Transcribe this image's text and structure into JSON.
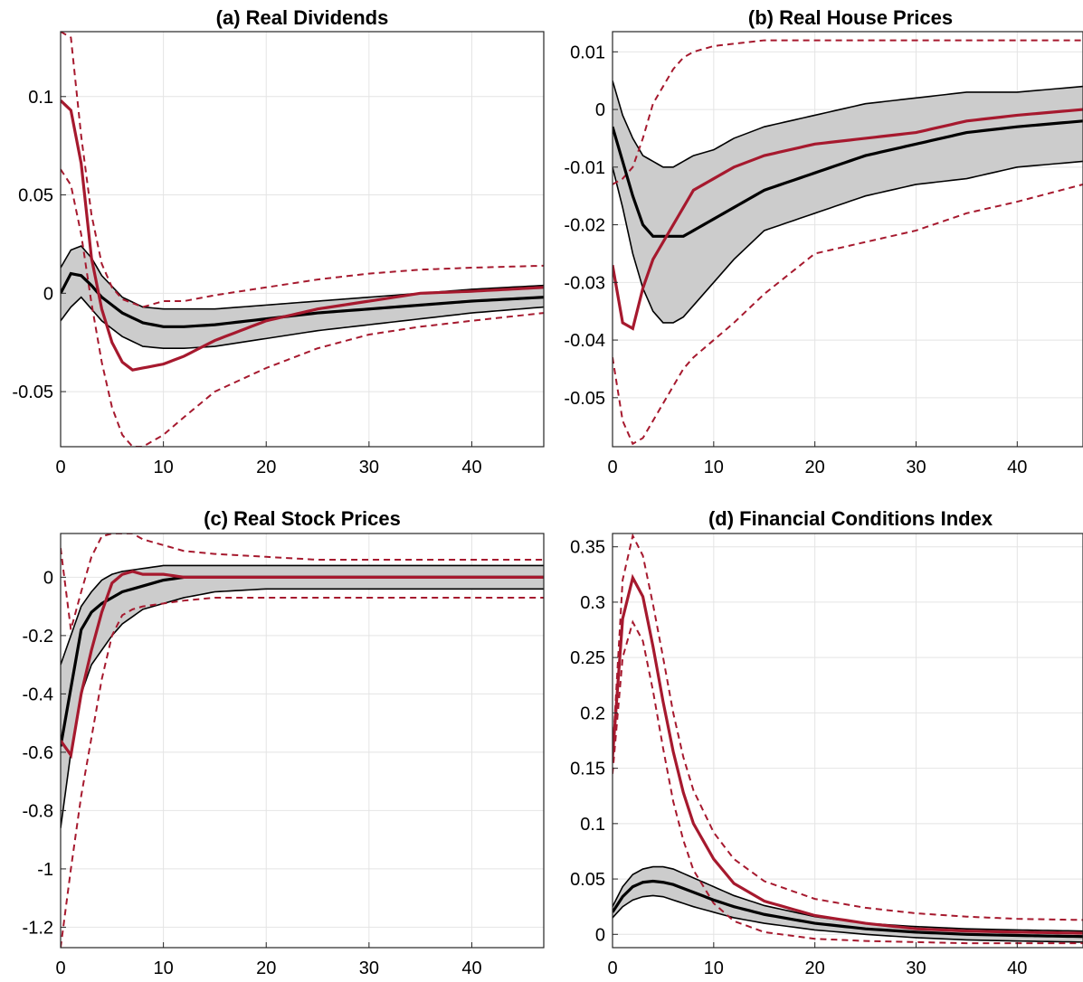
{
  "colors": {
    "irf": "#000000",
    "band_fill": "#cccccc",
    "alt": "#a6192e",
    "grid": "#e4e4e4",
    "axis": "#262626"
  },
  "chart_data": [
    {
      "id": "a",
      "type": "line",
      "title": "(a) Real Dividends",
      "xlim": [
        0,
        47
      ],
      "ylim": [
        -0.078,
        0.133
      ],
      "xticks": [
        0,
        10,
        20,
        30,
        40
      ],
      "xtick_labels": [
        "0",
        "10",
        "20",
        "30",
        "40"
      ],
      "yticks": [
        -0.05,
        0,
        0.05,
        0.1
      ],
      "ytick_labels": [
        "-0.05",
        "0",
        "0.05",
        "0.1"
      ],
      "grid": true,
      "series": [
        {
          "role": "band",
          "kx": [
            0,
            1,
            2,
            3,
            4,
            6,
            8,
            10,
            12,
            15,
            20,
            25,
            30,
            35,
            40,
            47
          ],
          "lower": [
            -0.014,
            -0.007,
            -0.002,
            -0.008,
            -0.014,
            -0.022,
            -0.027,
            -0.028,
            -0.028,
            -0.027,
            -0.023,
            -0.019,
            -0.016,
            -0.013,
            -0.01,
            -0.007
          ],
          "upper": [
            0.013,
            0.022,
            0.024,
            0.018,
            0.009,
            -0.002,
            -0.007,
            -0.008,
            -0.008,
            -0.008,
            -0.006,
            -0.004,
            -0.002,
            0.0,
            0.002,
            0.004
          ]
        },
        {
          "role": "irf",
          "kx": [
            0,
            1,
            2,
            3,
            4,
            6,
            8,
            10,
            12,
            15,
            20,
            25,
            30,
            35,
            40,
            47
          ],
          "y": [
            0.0,
            0.01,
            0.009,
            0.004,
            -0.002,
            -0.01,
            -0.015,
            -0.017,
            -0.017,
            -0.016,
            -0.013,
            -0.01,
            -0.008,
            -0.006,
            -0.004,
            -0.002
          ]
        },
        {
          "role": "alt",
          "kx": [
            0,
            1,
            2,
            3,
            4,
            5,
            6,
            7,
            8,
            10,
            12,
            15,
            20,
            25,
            30,
            35,
            40,
            47
          ],
          "y": [
            0.098,
            0.093,
            0.066,
            0.018,
            -0.008,
            -0.025,
            -0.035,
            -0.039,
            -0.038,
            -0.036,
            -0.032,
            -0.024,
            -0.014,
            -0.008,
            -0.004,
            0.0,
            0.001,
            0.003
          ]
        },
        {
          "role": "alt_band",
          "kx": [
            0,
            1,
            2,
            3,
            4,
            5,
            6,
            8,
            10,
            12,
            15,
            20,
            25,
            30,
            35,
            40,
            47
          ],
          "y": [
            0.133,
            0.13,
            0.08,
            0.04,
            0.015,
            0.003,
            -0.003,
            -0.007,
            -0.004,
            -0.004,
            -0.001,
            0.003,
            0.007,
            0.01,
            0.012,
            0.013,
            0.014
          ]
        },
        {
          "role": "alt_band",
          "kx": [
            0,
            1,
            2,
            3,
            4,
            5,
            6,
            7,
            8,
            10,
            12,
            15,
            20,
            25,
            30,
            35,
            40,
            47
          ],
          "y": [
            0.063,
            0.055,
            0.03,
            -0.005,
            -0.035,
            -0.058,
            -0.072,
            -0.078,
            -0.078,
            -0.072,
            -0.063,
            -0.05,
            -0.038,
            -0.028,
            -0.021,
            -0.017,
            -0.014,
            -0.01
          ]
        }
      ]
    },
    {
      "id": "b",
      "type": "line",
      "title": "(b) Real House Prices",
      "xlim": [
        0,
        46.5
      ],
      "ylim": [
        -0.0585,
        0.0135
      ],
      "xticks": [
        0,
        10,
        20,
        30,
        40
      ],
      "xtick_labels": [
        "0",
        "10",
        "20",
        "30",
        "40"
      ],
      "yticks": [
        -0.05,
        -0.04,
        -0.03,
        -0.02,
        -0.01,
        0,
        0.01
      ],
      "ytick_labels": [
        "-0.05",
        "-0.04",
        "-0.03",
        "-0.02",
        "-0.01",
        "0",
        "0.01"
      ],
      "grid": true,
      "series": [
        {
          "role": "band",
          "kx": [
            0,
            1,
            2,
            3,
            4,
            5,
            6,
            7,
            8,
            10,
            12,
            15,
            20,
            25,
            30,
            35,
            40,
            46.5
          ],
          "lower": [
            -0.01,
            -0.017,
            -0.025,
            -0.031,
            -0.035,
            -0.037,
            -0.037,
            -0.036,
            -0.034,
            -0.03,
            -0.026,
            -0.021,
            -0.018,
            -0.015,
            -0.013,
            -0.012,
            -0.01,
            -0.009
          ],
          "upper": [
            0.005,
            -0.001,
            -0.005,
            -0.008,
            -0.009,
            -0.01,
            -0.01,
            -0.009,
            -0.008,
            -0.007,
            -0.005,
            -0.003,
            -0.001,
            0.001,
            0.002,
            0.003,
            0.003,
            0.004
          ]
        },
        {
          "role": "irf",
          "kx": [
            0,
            1,
            2,
            3,
            4,
            5,
            6,
            7,
            8,
            10,
            12,
            15,
            20,
            25,
            30,
            35,
            40,
            46.5
          ],
          "y": [
            -0.003,
            -0.009,
            -0.015,
            -0.02,
            -0.022,
            -0.022,
            -0.022,
            -0.022,
            -0.021,
            -0.019,
            -0.017,
            -0.014,
            -0.011,
            -0.008,
            -0.006,
            -0.004,
            -0.003,
            -0.002
          ]
        },
        {
          "role": "alt",
          "kx": [
            0,
            1,
            2,
            3,
            4,
            5,
            6,
            7,
            8,
            10,
            12,
            15,
            20,
            25,
            30,
            35,
            40,
            46.5
          ],
          "y": [
            -0.027,
            -0.037,
            -0.038,
            -0.031,
            -0.026,
            -0.023,
            -0.02,
            -0.017,
            -0.014,
            -0.012,
            -0.01,
            -0.008,
            -0.006,
            -0.005,
            -0.004,
            -0.002,
            -0.001,
            0.0
          ]
        },
        {
          "role": "alt_band",
          "kx": [
            0,
            1,
            2,
            3,
            4,
            5,
            6,
            7,
            8,
            10,
            15,
            20,
            25,
            30,
            35,
            40,
            46.5
          ],
          "y": [
            -0.013,
            -0.012,
            -0.01,
            -0.005,
            0.001,
            0.004,
            0.007,
            0.009,
            0.01,
            0.011,
            0.012,
            0.012,
            0.012,
            0.012,
            0.012,
            0.012,
            0.012
          ]
        },
        {
          "role": "alt_band",
          "kx": [
            0,
            1,
            2,
            3,
            4,
            5,
            6,
            7,
            8,
            10,
            12,
            15,
            20,
            25,
            30,
            35,
            40,
            46.5
          ],
          "y": [
            -0.043,
            -0.054,
            -0.058,
            -0.057,
            -0.054,
            -0.051,
            -0.048,
            -0.045,
            -0.043,
            -0.04,
            -0.037,
            -0.032,
            -0.025,
            -0.023,
            -0.021,
            -0.018,
            -0.016,
            -0.013
          ]
        }
      ]
    },
    {
      "id": "c",
      "type": "line",
      "title": "(c) Real Stock Prices",
      "xlim": [
        0,
        47
      ],
      "ylim": [
        -1.27,
        0.15
      ],
      "xticks": [
        0,
        10,
        20,
        30,
        40
      ],
      "xtick_labels": [
        "0",
        "10",
        "20",
        "30",
        "40"
      ],
      "yticks": [
        -1.2,
        -1,
        -0.8,
        -0.6,
        -0.4,
        -0.2,
        0
      ],
      "ytick_labels": [
        "-1.2",
        "-1",
        "-0.8",
        "-0.6",
        "-0.4",
        "-0.2",
        "0"
      ],
      "grid": true,
      "series": [
        {
          "role": "band",
          "kx": [
            0,
            1,
            2,
            3,
            4,
            5,
            6,
            8,
            10,
            12,
            15,
            20,
            25,
            30,
            35,
            40,
            47
          ],
          "lower": [
            -0.86,
            -0.6,
            -0.4,
            -0.3,
            -0.25,
            -0.2,
            -0.16,
            -0.11,
            -0.09,
            -0.07,
            -0.05,
            -0.04,
            -0.04,
            -0.04,
            -0.04,
            -0.04,
            -0.04
          ],
          "upper": [
            -0.3,
            -0.2,
            -0.1,
            -0.05,
            -0.01,
            0.01,
            0.02,
            0.03,
            0.04,
            0.04,
            0.04,
            0.04,
            0.04,
            0.04,
            0.04,
            0.04,
            0.04
          ]
        },
        {
          "role": "irf",
          "kx": [
            0,
            1,
            2,
            3,
            4,
            5,
            6,
            8,
            10,
            12,
            15,
            20,
            25,
            30,
            35,
            40,
            47
          ],
          "y": [
            -0.58,
            -0.38,
            -0.18,
            -0.12,
            -0.09,
            -0.07,
            -0.05,
            -0.03,
            -0.01,
            0.0,
            0.0,
            0.0,
            0.0,
            0.0,
            0.0,
            0.0,
            0.0
          ]
        },
        {
          "role": "alt",
          "kx": [
            0,
            1,
            2,
            3,
            4,
            5,
            6,
            7,
            8,
            10,
            12,
            15,
            20,
            25,
            30,
            35,
            40,
            47
          ],
          "y": [
            -0.56,
            -0.61,
            -0.4,
            -0.25,
            -0.12,
            -0.02,
            0.01,
            0.02,
            0.01,
            0.01,
            0.0,
            0.0,
            0.0,
            0.0,
            0.0,
            0.0,
            0.0,
            0.0
          ]
        },
        {
          "role": "alt_band",
          "kx": [
            0,
            1,
            2,
            3,
            4,
            5,
            6,
            7,
            8,
            10,
            12,
            15,
            20,
            25,
            30,
            35,
            40,
            47
          ],
          "y": [
            0.1,
            -0.18,
            -0.05,
            0.07,
            0.14,
            0.15,
            0.15,
            0.15,
            0.13,
            0.11,
            0.09,
            0.08,
            0.07,
            0.06,
            0.06,
            0.06,
            0.06,
            0.06
          ]
        },
        {
          "role": "alt_band",
          "kx": [
            0,
            1,
            2,
            3,
            4,
            5,
            6,
            7,
            8,
            10,
            12,
            15,
            20,
            25,
            30,
            35,
            40,
            47
          ],
          "y": [
            -1.27,
            -1.0,
            -0.75,
            -0.55,
            -0.35,
            -0.2,
            -0.13,
            -0.11,
            -0.1,
            -0.09,
            -0.08,
            -0.07,
            -0.07,
            -0.07,
            -0.07,
            -0.07,
            -0.07,
            -0.07
          ]
        }
      ]
    },
    {
      "id": "d",
      "type": "line",
      "title": "(d) Financial Conditions Index",
      "xlim": [
        0,
        46.5
      ],
      "ylim": [
        -0.012,
        0.362
      ],
      "xticks": [
        0,
        10,
        20,
        30,
        40
      ],
      "xtick_labels": [
        "0",
        "10",
        "20",
        "30",
        "40"
      ],
      "yticks": [
        0,
        0.05,
        0.1,
        0.15,
        0.2,
        0.25,
        0.3,
        0.35
      ],
      "ytick_labels": [
        "0",
        "0.05",
        "0.1",
        "0.15",
        "0.2",
        "0.25",
        "0.3",
        "0.35"
      ],
      "grid": true,
      "series": [
        {
          "role": "band",
          "kx": [
            0,
            1,
            2,
            3,
            4,
            5,
            6,
            8,
            10,
            12,
            15,
            20,
            25,
            30,
            35,
            40,
            46.5
          ],
          "lower": [
            0.015,
            0.025,
            0.031,
            0.034,
            0.035,
            0.034,
            0.031,
            0.025,
            0.02,
            0.015,
            0.01,
            0.004,
            0.0,
            -0.003,
            -0.005,
            -0.006,
            -0.007
          ],
          "upper": [
            0.025,
            0.043,
            0.054,
            0.059,
            0.061,
            0.061,
            0.059,
            0.051,
            0.043,
            0.035,
            0.026,
            0.016,
            0.01,
            0.007,
            0.005,
            0.004,
            0.003
          ]
        },
        {
          "role": "irf",
          "kx": [
            0,
            1,
            2,
            3,
            4,
            5,
            6,
            8,
            10,
            12,
            15,
            20,
            25,
            30,
            35,
            40,
            46.5
          ],
          "y": [
            0.02,
            0.034,
            0.043,
            0.047,
            0.048,
            0.047,
            0.045,
            0.038,
            0.031,
            0.025,
            0.018,
            0.01,
            0.005,
            0.002,
            0.0,
            -0.001,
            -0.002
          ]
        },
        {
          "role": "alt",
          "kx": [
            0,
            1,
            2,
            3,
            4,
            5,
            6,
            7,
            8,
            10,
            12,
            15,
            20,
            25,
            30,
            35,
            40,
            46.5
          ],
          "y": [
            0.16,
            0.285,
            0.322,
            0.305,
            0.26,
            0.21,
            0.165,
            0.128,
            0.1,
            0.068,
            0.046,
            0.03,
            0.017,
            0.01,
            0.005,
            0.003,
            0.002,
            0.001
          ]
        },
        {
          "role": "alt_band",
          "kx": [
            0,
            1,
            2,
            3,
            4,
            5,
            6,
            7,
            8,
            10,
            12,
            15,
            20,
            25,
            30,
            35,
            40,
            46.5
          ],
          "y": [
            0.162,
            0.32,
            0.36,
            0.342,
            0.298,
            0.25,
            0.2,
            0.16,
            0.13,
            0.092,
            0.068,
            0.048,
            0.032,
            0.024,
            0.019,
            0.016,
            0.014,
            0.013
          ]
        },
        {
          "role": "alt_band",
          "kx": [
            0,
            1,
            2,
            3,
            4,
            5,
            6,
            7,
            8,
            10,
            12,
            15,
            20,
            25,
            30,
            35,
            40,
            46.5
          ],
          "y": [
            0.145,
            0.25,
            0.282,
            0.265,
            0.22,
            0.168,
            0.12,
            0.085,
            0.058,
            0.028,
            0.012,
            0.002,
            -0.004,
            -0.006,
            -0.007,
            -0.008,
            -0.008,
            -0.008
          ]
        }
      ]
    }
  ]
}
